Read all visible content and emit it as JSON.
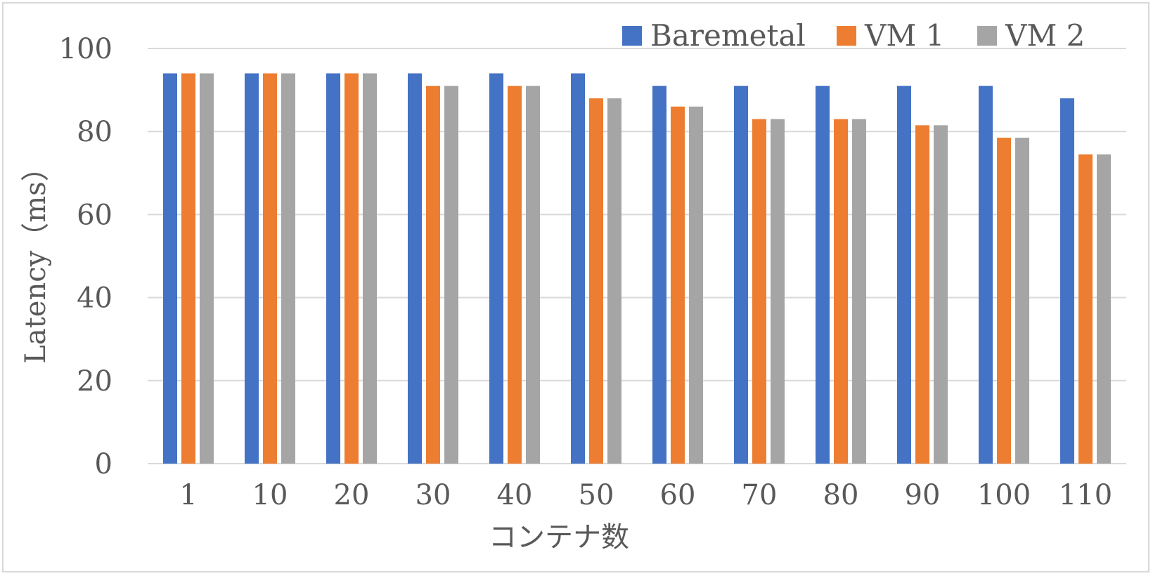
{
  "chart_data": {
    "type": "bar",
    "xlabel": "コンテナ数",
    "ylabel": "Latency（ms）",
    "categories": [
      "1",
      "10",
      "20",
      "30",
      "40",
      "50",
      "60",
      "70",
      "80",
      "90",
      "100",
      "110"
    ],
    "ylim": [
      0,
      100
    ],
    "yticks": [
      "0",
      "20",
      "40",
      "60",
      "80",
      "100"
    ],
    "grid": true,
    "legend_position": "top-right",
    "series": [
      {
        "name": "Baremetal",
        "color": "#4472c4",
        "values": [
          94,
          94,
          94,
          94,
          94,
          94,
          91,
          91,
          91,
          91,
          91,
          88
        ]
      },
      {
        "name": "VM 1",
        "color": "#ed7d31",
        "values": [
          94,
          94,
          94,
          91,
          91,
          88,
          86,
          83,
          83,
          81.5,
          78.5,
          74.5
        ]
      },
      {
        "name": "VM 2",
        "color": "#a5a5a5",
        "values": [
          94,
          94,
          94,
          91,
          91,
          88,
          86,
          83,
          83,
          81.5,
          78.5,
          74.5
        ]
      }
    ]
  }
}
